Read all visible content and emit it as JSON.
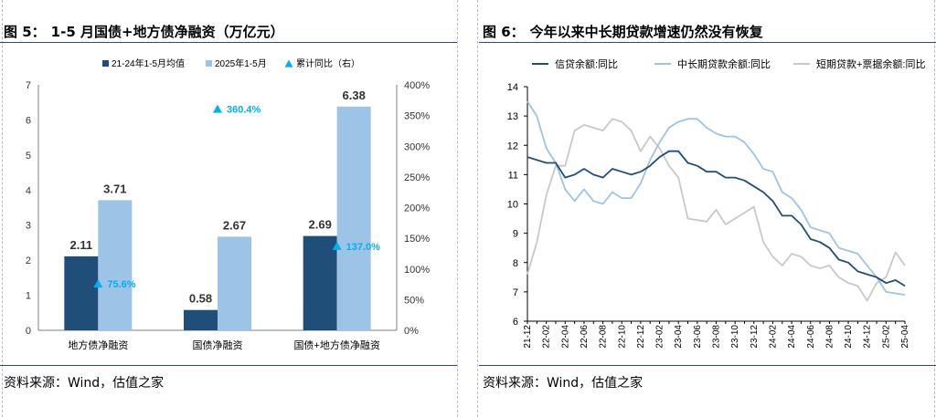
{
  "left": {
    "figure_no": "图 5：",
    "title": "1-5 月国债+地方债净融资（万亿元）",
    "source": "资料来源：Wind，估值之家",
    "chart_data": {
      "type": "bar",
      "categories": [
        "地方债净融资",
        "国债净融资",
        "国债+地方债净融资"
      ],
      "series": [
        {
          "name": "21-24年1-5月均值",
          "values": [
            2.11,
            0.58,
            2.69
          ],
          "color": "#1f4e79",
          "labels": [
            "2.11",
            "0.58",
            "2.69"
          ]
        },
        {
          "name": "2025年1-5月",
          "values": [
            3.71,
            2.67,
            6.38
          ],
          "color": "#9dc3e6",
          "labels": [
            "3.71",
            "2.67",
            "6.38"
          ]
        },
        {
          "name": "累计同比（右）",
          "axis": "right",
          "marker": "triangle",
          "values": [
            75.6,
            360.4,
            137.0
          ],
          "color": "#00b0f0",
          "labels": [
            "75.6%",
            "360.4%",
            "137.0%"
          ]
        }
      ],
      "ylim": [
        0,
        7
      ],
      "y_ticks": [
        "0",
        "1",
        "2",
        "3",
        "4",
        "5",
        "6",
        "7"
      ],
      "y2lim": [
        0,
        400
      ],
      "y2_ticks": [
        "0%",
        "50%",
        "100%",
        "150%",
        "200%",
        "250%",
        "300%",
        "350%",
        "400%"
      ],
      "legend": "top",
      "grid": false
    }
  },
  "right": {
    "figure_no": "图 6：",
    "title": "今年以来中长期贷款增速仍然没有恢复",
    "source": "资料来源：Wind，估值之家",
    "chart_data": {
      "type": "line",
      "x": [
        "21-12",
        "22-01",
        "22-02",
        "22-03",
        "22-04",
        "22-05",
        "22-06",
        "22-07",
        "22-08",
        "22-09",
        "22-10",
        "22-11",
        "22-12",
        "23-01",
        "23-02",
        "23-03",
        "23-04",
        "23-05",
        "23-06",
        "23-07",
        "23-08",
        "23-09",
        "23-10",
        "23-11",
        "23-12",
        "24-01",
        "24-02",
        "24-03",
        "24-04",
        "24-05",
        "24-06",
        "24-07",
        "24-08",
        "24-09",
        "24-10",
        "24-11",
        "24-12",
        "25-01",
        "25-02",
        "25-03",
        "25-04"
      ],
      "x_tick_labels": [
        "21-12",
        "22-02",
        "22-04",
        "22-06",
        "22-08",
        "22-10",
        "22-12",
        "23-02",
        "23-04",
        "23-06",
        "23-08",
        "23-10",
        "23-12",
        "24-02",
        "24-04",
        "24-06",
        "24-08",
        "24-10",
        "24-12",
        "25-02",
        "25-04"
      ],
      "series": [
        {
          "name": "信贷余额:同比",
          "color": "#1f4e79",
          "values": [
            11.6,
            11.5,
            11.4,
            11.4,
            10.9,
            11.0,
            11.2,
            11.0,
            10.9,
            11.2,
            11.1,
            11.0,
            11.1,
            11.3,
            11.6,
            11.8,
            11.8,
            11.4,
            11.3,
            11.1,
            11.1,
            10.9,
            10.9,
            10.8,
            10.6,
            10.4,
            10.1,
            9.6,
            9.6,
            9.3,
            8.8,
            8.7,
            8.5,
            8.1,
            8.0,
            7.7,
            7.6,
            7.5,
            7.3,
            7.4,
            7.2
          ]
        },
        {
          "name": "中长期贷款余额:同比",
          "color": "#9dc3e6",
          "values": [
            13.5,
            13.0,
            11.9,
            11.4,
            10.5,
            10.1,
            10.5,
            10.1,
            10.0,
            10.4,
            10.2,
            10.2,
            10.7,
            11.5,
            12.1,
            12.6,
            12.8,
            12.9,
            12.9,
            12.6,
            12.4,
            12.3,
            12.3,
            12.1,
            11.7,
            11.2,
            11.1,
            10.4,
            10.2,
            9.8,
            9.2,
            9.1,
            9.0,
            8.5,
            8.4,
            8.3,
            7.9,
            7.5,
            7.0,
            6.95,
            6.9
          ]
        },
        {
          "name": "短期贷款+票据余额:同比",
          "color": "#c8c8c8",
          "values": [
            7.6,
            8.7,
            10.3,
            11.3,
            11.3,
            12.5,
            12.7,
            12.6,
            12.5,
            12.9,
            12.8,
            12.5,
            11.8,
            12.3,
            11.9,
            11.3,
            10.9,
            9.5,
            9.45,
            9.4,
            9.8,
            9.3,
            9.5,
            9.7,
            9.9,
            8.7,
            8.2,
            7.9,
            8.3,
            8.2,
            7.9,
            7.8,
            7.9,
            7.5,
            7.3,
            7.2,
            6.7,
            7.3,
            7.5,
            8.35,
            7.9
          ]
        }
      ],
      "ylim": [
        6,
        14
      ],
      "y_ticks": [
        "6",
        "7",
        "8",
        "9",
        "10",
        "11",
        "12",
        "13",
        "14"
      ],
      "legend": "top",
      "grid": false
    }
  }
}
